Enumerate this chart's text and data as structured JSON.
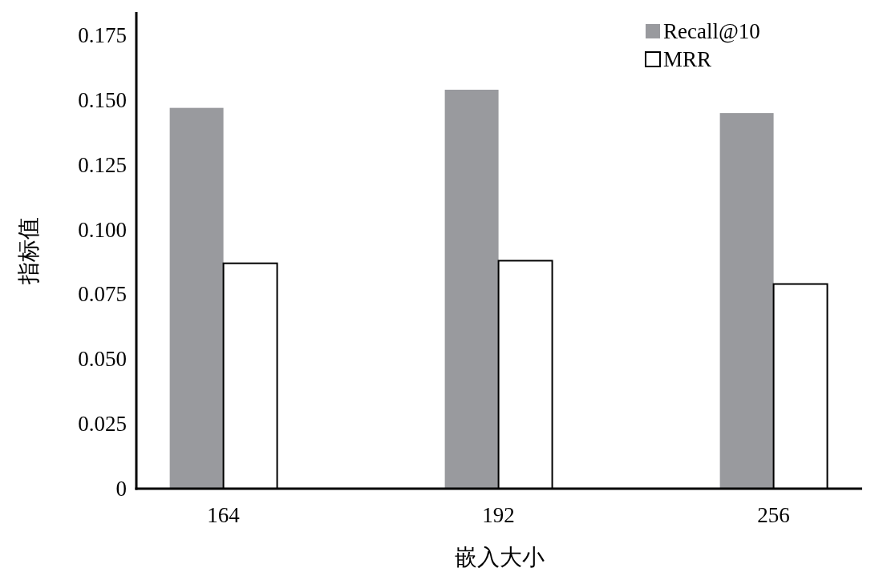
{
  "chart_data": {
    "type": "bar",
    "xlabel": "嵌入大小",
    "ylabel": "指标值",
    "categories": [
      "164",
      "192",
      "256"
    ],
    "series": [
      {
        "name": "Recall@10",
        "color": "#999a9e",
        "values": [
          0.147,
          0.154,
          0.145
        ]
      },
      {
        "name": "MRR",
        "color": "#ffffff",
        "values": [
          0.087,
          0.088,
          0.079
        ]
      }
    ],
    "ylim": [
      0,
      0.184
    ],
    "yticks": [
      0,
      0.025,
      {
        "value": 0.05,
        "label": "0.050"
      },
      0.075,
      {
        "value": 0.1,
        "label": "0.100"
      },
      0.125,
      {
        "value": 0.15,
        "label": "0.150"
      },
      0.175
    ],
    "legend": "top right",
    "grid": false
  }
}
